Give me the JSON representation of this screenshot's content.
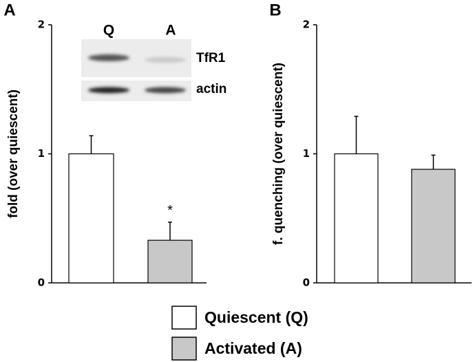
{
  "chart_data": [
    {
      "type": "bar",
      "panel": "A",
      "ylabel": "fold (over quiescent)",
      "values": [
        1.0,
        0.33
      ],
      "errors": [
        0.14,
        0.14
      ],
      "ylim": [
        0,
        2
      ],
      "yticks": [
        0,
        1,
        2
      ],
      "annotation": "*",
      "annotation_bar": 1,
      "inset": {
        "columns": [
          "Q",
          "A"
        ],
        "rows": [
          "TfR1",
          "actin"
        ]
      }
    },
    {
      "type": "bar",
      "panel": "B",
      "ylabel": "f. quenching (over quiescent)",
      "values": [
        1.0,
        0.88
      ],
      "errors": [
        0.29,
        0.11
      ],
      "ylim": [
        0,
        2
      ],
      "yticks": [
        0,
        1,
        2
      ]
    }
  ],
  "legend": [
    {
      "label": "Quiescent (Q)",
      "color": "#ffffff"
    },
    {
      "label": "Activated (A)",
      "color": "#c8c8c8"
    }
  ]
}
